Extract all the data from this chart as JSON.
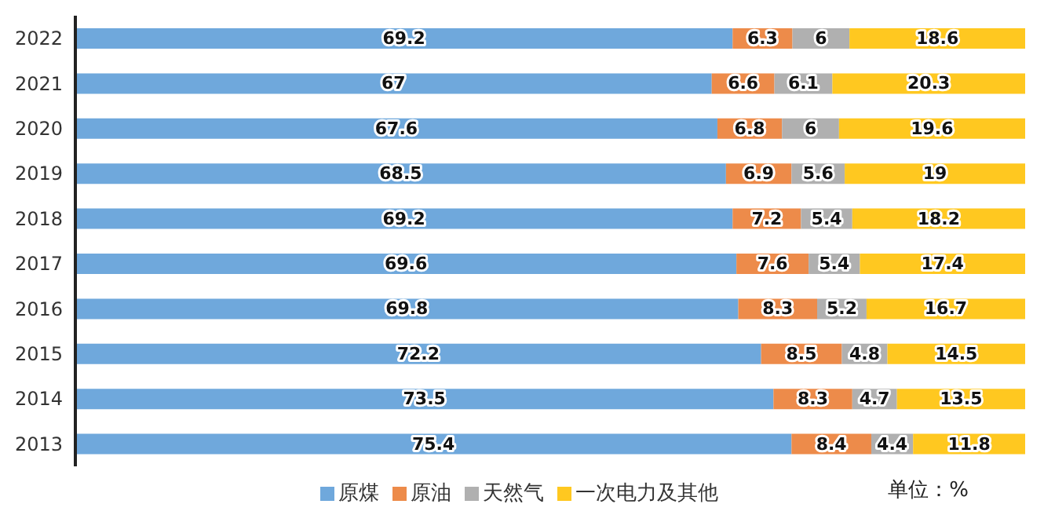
{
  "chart_data": {
    "type": "bar",
    "orientation": "horizontal",
    "stacked": true,
    "categories": [
      "2022",
      "2021",
      "2020",
      "2019",
      "2018",
      "2017",
      "2016",
      "2015",
      "2014",
      "2013"
    ],
    "series": [
      {
        "name": "原煤",
        "color": "#6fa8dc",
        "values": [
          69.2,
          67,
          67.6,
          68.5,
          69.2,
          69.6,
          69.8,
          72.2,
          73.5,
          75.4
        ]
      },
      {
        "name": "原油",
        "color": "#ed8b4a",
        "values": [
          6.3,
          6.6,
          6.8,
          6.9,
          7.2,
          7.6,
          8.3,
          8.5,
          8.3,
          8.4
        ]
      },
      {
        "name": "天然气",
        "color": "#b0b0b0",
        "values": [
          6,
          6.1,
          6,
          5.6,
          5.4,
          5.4,
          5.2,
          4.8,
          4.7,
          4.4
        ]
      },
      {
        "name": "一次电力及其他",
        "color": "#ffc820",
        "values": [
          18.6,
          20.3,
          19.6,
          19,
          18.2,
          17.4,
          16.7,
          14.5,
          13.5,
          11.8
        ]
      }
    ],
    "xlim": [
      0,
      100
    ],
    "tick_labels": "y",
    "data_labels": true,
    "legend": "bottom",
    "annotations": [
      "单位：%"
    ]
  }
}
